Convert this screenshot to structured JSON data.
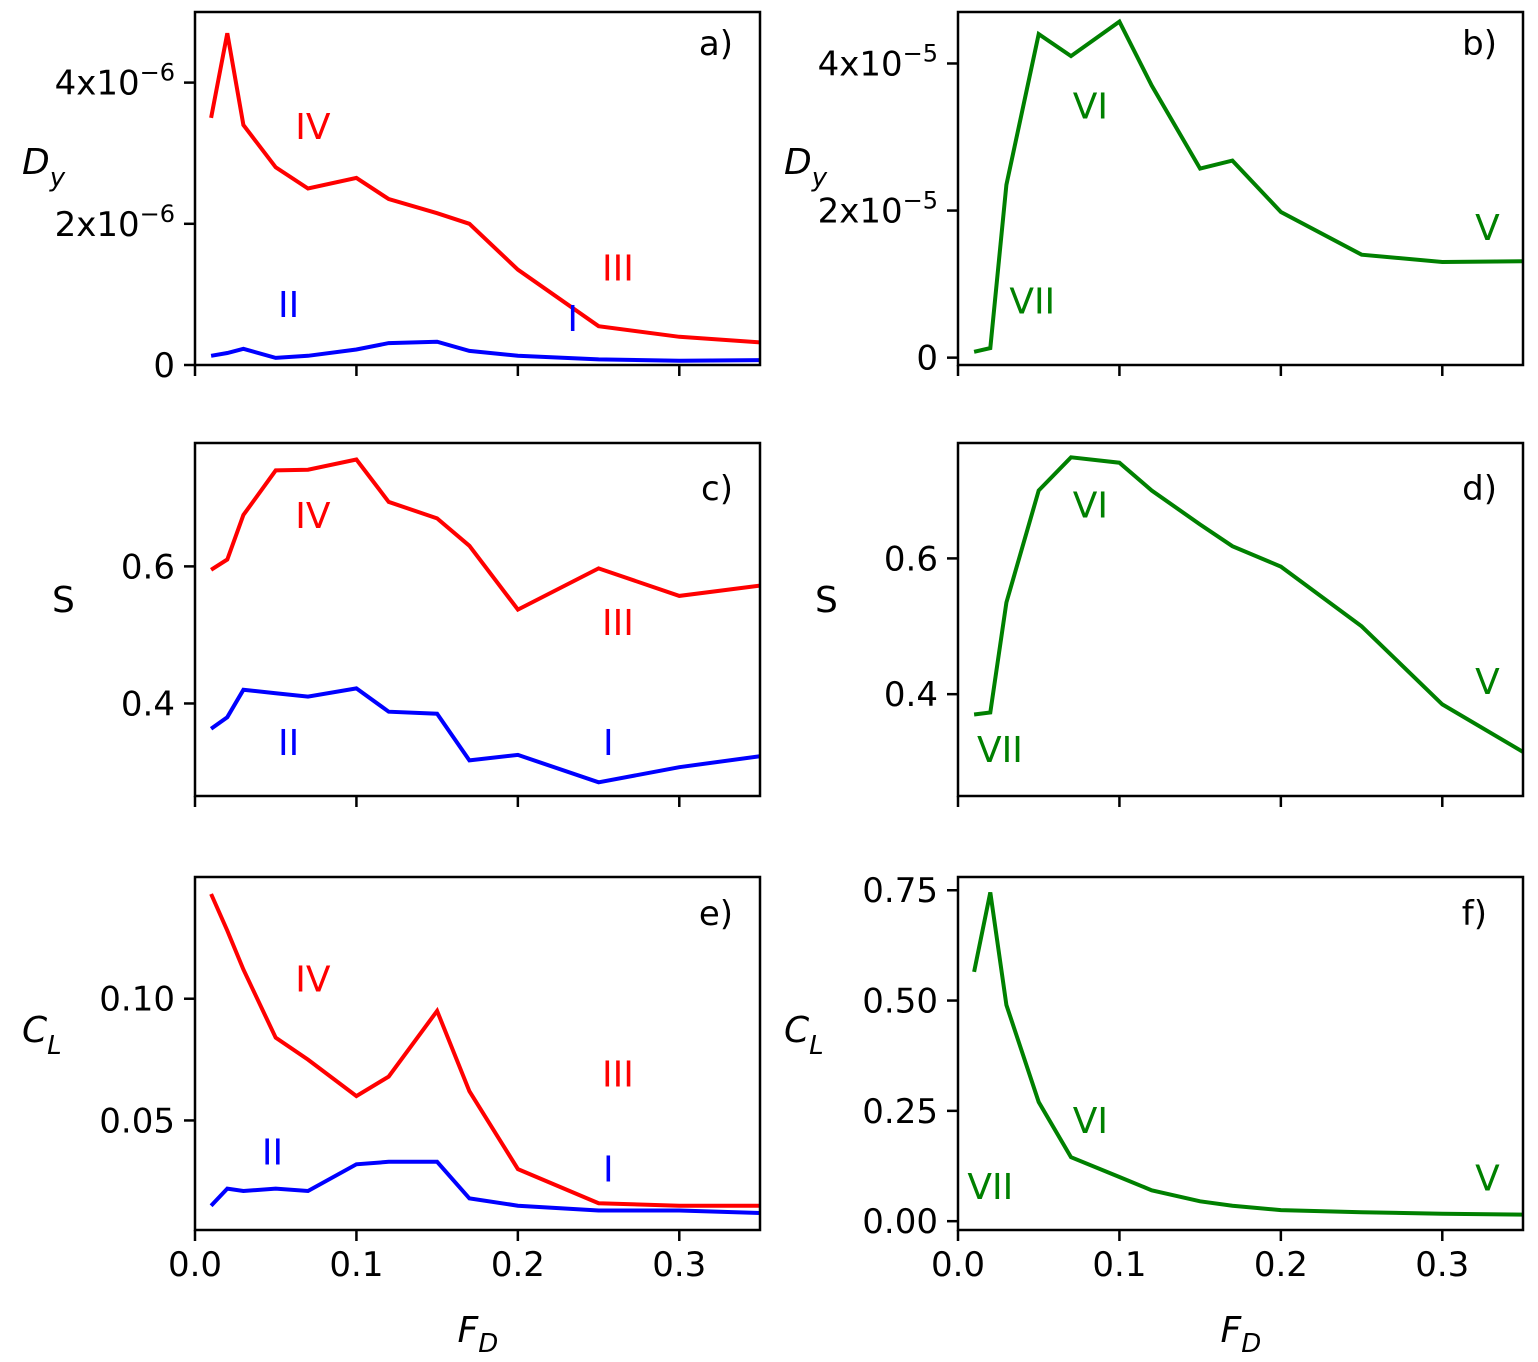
{
  "chart_data": [
    {
      "id": "a",
      "type": "line",
      "panel_label": "a)",
      "ylabel_main": "D",
      "ylabel_sub": "y",
      "xlabel_main": "",
      "xlabel_sub": "",
      "xlim": [
        0.0,
        0.35
      ],
      "ylim": [
        0,
        5e-06
      ],
      "x_ticks": [
        0.0,
        0.1,
        0.2,
        0.3
      ],
      "x_tick_labels": [],
      "y_ticks": [
        0,
        2e-06,
        4e-06
      ],
      "y_tick_labels": [
        {
          "base": "0",
          "exp": ""
        },
        {
          "base": "2x10",
          "exp": "−6"
        },
        {
          "base": "4x10",
          "exp": "−6"
        }
      ],
      "series": [
        {
          "name": "red",
          "color": "#ff0000",
          "x": [
            0.01,
            0.02,
            0.03,
            0.05,
            0.07,
            0.1,
            0.12,
            0.15,
            0.17,
            0.2,
            0.25,
            0.3,
            0.35
          ],
          "y": [
            3.5e-06,
            4.7e-06,
            3.4e-06,
            2.8e-06,
            2.5e-06,
            2.65e-06,
            2.35e-06,
            2.15e-06,
            2e-06,
            1.35e-06,
            5.5e-07,
            4e-07,
            3.2e-07
          ]
        },
        {
          "name": "blue",
          "color": "#0000ff",
          "x": [
            0.01,
            0.02,
            0.03,
            0.05,
            0.07,
            0.1,
            0.12,
            0.15,
            0.17,
            0.2,
            0.25,
            0.3,
            0.35
          ],
          "y": [
            1.3e-07,
            1.7e-07,
            2.3e-07,
            1e-07,
            1.3e-07,
            2.2e-07,
            3.1e-07,
            3.3e-07,
            2e-07,
            1.3e-07,
            8e-08,
            6e-08,
            7e-08
          ]
        }
      ],
      "annotations": [
        {
          "text": "IV",
          "x": 0.073,
          "y": 3.2e-06,
          "color": "#ff0000"
        },
        {
          "text": "III",
          "x": 0.262,
          "y": 1.2e-06,
          "color": "#ff0000"
        },
        {
          "text": "II",
          "x": 0.058,
          "y": 6.8e-07,
          "color": "#0000ff"
        },
        {
          "text": "I",
          "x": 0.234,
          "y": 4.8e-07,
          "color": "#0000ff"
        }
      ]
    },
    {
      "id": "b",
      "type": "line",
      "panel_label": "b)",
      "ylabel_main": "D",
      "ylabel_sub": "y",
      "xlabel_main": "",
      "xlabel_sub": "",
      "xlim": [
        0.0,
        0.35
      ],
      "ylim": [
        -1e-06,
        4.7e-05
      ],
      "x_ticks": [
        0.0,
        0.1,
        0.2,
        0.3
      ],
      "x_tick_labels": [],
      "y_ticks": [
        0,
        2e-05,
        4e-05
      ],
      "y_tick_labels": [
        {
          "base": "0",
          "exp": ""
        },
        {
          "base": "2x10",
          "exp": "−5"
        },
        {
          "base": "4x10",
          "exp": "−5"
        }
      ],
      "series": [
        {
          "name": "green",
          "color": "#008000",
          "x": [
            0.01,
            0.02,
            0.03,
            0.05,
            0.07,
            0.1,
            0.12,
            0.15,
            0.17,
            0.2,
            0.25,
            0.3,
            0.35
          ],
          "y": [
            8e-07,
            1.3e-06,
            2.35e-05,
            4.4e-05,
            4.1e-05,
            4.57e-05,
            3.7e-05,
            2.57e-05,
            2.68e-05,
            1.98e-05,
            1.4e-05,
            1.3e-05,
            1.31e-05
          ]
        }
      ],
      "annotations": [
        {
          "text": "VI",
          "x": 0.082,
          "y": 3.25e-05,
          "color": "#008000"
        },
        {
          "text": "VII",
          "x": 0.046,
          "y": 6e-06,
          "color": "#008000"
        },
        {
          "text": "V",
          "x": 0.328,
          "y": 1.6e-05,
          "color": "#008000"
        }
      ]
    },
    {
      "id": "c",
      "type": "line",
      "panel_label": "c)",
      "ylabel_main": "S",
      "ylabel_sub": "",
      "xlabel_main": "",
      "xlabel_sub": "",
      "xlim": [
        0.0,
        0.35
      ],
      "ylim": [
        0.265,
        0.78
      ],
      "x_ticks": [
        0.0,
        0.1,
        0.2,
        0.3
      ],
      "x_tick_labels": [],
      "y_ticks": [
        0.4,
        0.6
      ],
      "y_tick_labels": [
        {
          "base": "0.4",
          "exp": ""
        },
        {
          "base": "0.6",
          "exp": ""
        }
      ],
      "series": [
        {
          "name": "red",
          "color": "#ff0000",
          "x": [
            0.01,
            0.02,
            0.03,
            0.05,
            0.07,
            0.1,
            0.12,
            0.15,
            0.17,
            0.2,
            0.25,
            0.3,
            0.35
          ],
          "y": [
            0.595,
            0.61,
            0.675,
            0.74,
            0.741,
            0.756,
            0.694,
            0.67,
            0.63,
            0.537,
            0.597,
            0.557,
            0.572
          ]
        },
        {
          "name": "blue",
          "color": "#0000ff",
          "x": [
            0.01,
            0.02,
            0.03,
            0.05,
            0.07,
            0.1,
            0.12,
            0.15,
            0.17,
            0.2,
            0.25,
            0.3,
            0.35
          ],
          "y": [
            0.363,
            0.38,
            0.42,
            0.415,
            0.41,
            0.422,
            0.388,
            0.385,
            0.317,
            0.325,
            0.285,
            0.307,
            0.323
          ]
        }
      ],
      "annotations": [
        {
          "text": "IV",
          "x": 0.073,
          "y": 0.656,
          "color": "#ff0000"
        },
        {
          "text": "III",
          "x": 0.262,
          "y": 0.5,
          "color": "#ff0000"
        },
        {
          "text": "II",
          "x": 0.058,
          "y": 0.325,
          "color": "#0000ff"
        },
        {
          "text": "I",
          "x": 0.256,
          "y": 0.325,
          "color": "#0000ff"
        }
      ]
    },
    {
      "id": "d",
      "type": "line",
      "panel_label": "d)",
      "ylabel_main": "S",
      "ylabel_sub": "",
      "xlabel_main": "",
      "xlabel_sub": "",
      "xlim": [
        0.0,
        0.35
      ],
      "ylim": [
        0.25,
        0.77
      ],
      "x_ticks": [
        0.0,
        0.1,
        0.2,
        0.3
      ],
      "x_tick_labels": [],
      "y_ticks": [
        0.4,
        0.6
      ],
      "y_tick_labels": [
        {
          "base": "0.4",
          "exp": ""
        },
        {
          "base": "0.6",
          "exp": ""
        }
      ],
      "series": [
        {
          "name": "green",
          "color": "#008000",
          "x": [
            0.01,
            0.02,
            0.03,
            0.05,
            0.07,
            0.1,
            0.12,
            0.15,
            0.17,
            0.2,
            0.25,
            0.3,
            0.35
          ],
          "y": [
            0.37,
            0.373,
            0.535,
            0.7,
            0.749,
            0.741,
            0.7,
            0.65,
            0.618,
            0.588,
            0.5,
            0.385,
            0.315
          ]
        }
      ],
      "annotations": [
        {
          "text": "VI",
          "x": 0.082,
          "y": 0.66,
          "color": "#008000"
        },
        {
          "text": "VII",
          "x": 0.026,
          "y": 0.3,
          "color": "#008000"
        },
        {
          "text": "V",
          "x": 0.328,
          "y": 0.4,
          "color": "#008000"
        }
      ]
    },
    {
      "id": "e",
      "type": "line",
      "panel_label": "e)",
      "ylabel_main": "C",
      "ylabel_sub": "L",
      "xlabel_main": "F",
      "xlabel_sub": "D",
      "xlim": [
        0.0,
        0.35
      ],
      "ylim": [
        0.005,
        0.15
      ],
      "x_ticks": [
        0.0,
        0.1,
        0.2,
        0.3
      ],
      "x_tick_labels": [
        "0.0",
        "0.1",
        "0.2",
        "0.3"
      ],
      "y_ticks": [
        0.05,
        0.1
      ],
      "y_tick_labels": [
        {
          "base": "0.05",
          "exp": ""
        },
        {
          "base": "0.10",
          "exp": ""
        }
      ],
      "series": [
        {
          "name": "red",
          "color": "#ff0000",
          "x": [
            0.01,
            0.02,
            0.03,
            0.05,
            0.07,
            0.1,
            0.12,
            0.15,
            0.17,
            0.2,
            0.25,
            0.3,
            0.35
          ],
          "y": [
            0.143,
            0.128,
            0.112,
            0.084,
            0.075,
            0.06,
            0.068,
            0.095,
            0.062,
            0.03,
            0.016,
            0.015,
            0.015
          ]
        },
        {
          "name": "blue",
          "color": "#0000ff",
          "x": [
            0.01,
            0.02,
            0.03,
            0.05,
            0.07,
            0.1,
            0.12,
            0.15,
            0.17,
            0.2,
            0.25,
            0.3,
            0.35
          ],
          "y": [
            0.015,
            0.022,
            0.021,
            0.022,
            0.021,
            0.032,
            0.033,
            0.033,
            0.018,
            0.015,
            0.013,
            0.013,
            0.012
          ]
        }
      ],
      "annotations": [
        {
          "text": "IV",
          "x": 0.073,
          "y": 0.103,
          "color": "#ff0000"
        },
        {
          "text": "III",
          "x": 0.262,
          "y": 0.064,
          "color": "#ff0000"
        },
        {
          "text": "II",
          "x": 0.048,
          "y": 0.032,
          "color": "#0000ff"
        },
        {
          "text": "I",
          "x": 0.256,
          "y": 0.025,
          "color": "#0000ff"
        }
      ]
    },
    {
      "id": "f",
      "type": "line",
      "panel_label": "f)",
      "ylabel_main": "C",
      "ylabel_sub": "L",
      "xlabel_main": "F",
      "xlabel_sub": "D",
      "xlim": [
        0.0,
        0.35
      ],
      "ylim": [
        -0.02,
        0.78
      ],
      "x_ticks": [
        0.0,
        0.1,
        0.2,
        0.3
      ],
      "x_tick_labels": [
        "0.0",
        "0.1",
        "0.2",
        "0.3"
      ],
      "y_ticks": [
        0.0,
        0.25,
        0.5,
        0.75
      ],
      "y_tick_labels": [
        {
          "base": "0.00",
          "exp": ""
        },
        {
          "base": "0.25",
          "exp": ""
        },
        {
          "base": "0.50",
          "exp": ""
        },
        {
          "base": "0.75",
          "exp": ""
        }
      ],
      "series": [
        {
          "name": "green",
          "color": "#008000",
          "x": [
            0.01,
            0.02,
            0.03,
            0.05,
            0.07,
            0.1,
            0.12,
            0.15,
            0.17,
            0.2,
            0.25,
            0.3,
            0.35
          ],
          "y": [
            0.565,
            0.745,
            0.49,
            0.27,
            0.145,
            0.1,
            0.07,
            0.045,
            0.035,
            0.025,
            0.02,
            0.017,
            0.015
          ]
        }
      ],
      "annotations": [
        {
          "text": "VI",
          "x": 0.082,
          "y": 0.2,
          "color": "#008000"
        },
        {
          "text": "VII",
          "x": 0.02,
          "y": 0.05,
          "color": "#008000"
        },
        {
          "text": "V",
          "x": 0.328,
          "y": 0.07,
          "color": "#008000"
        }
      ]
    }
  ]
}
